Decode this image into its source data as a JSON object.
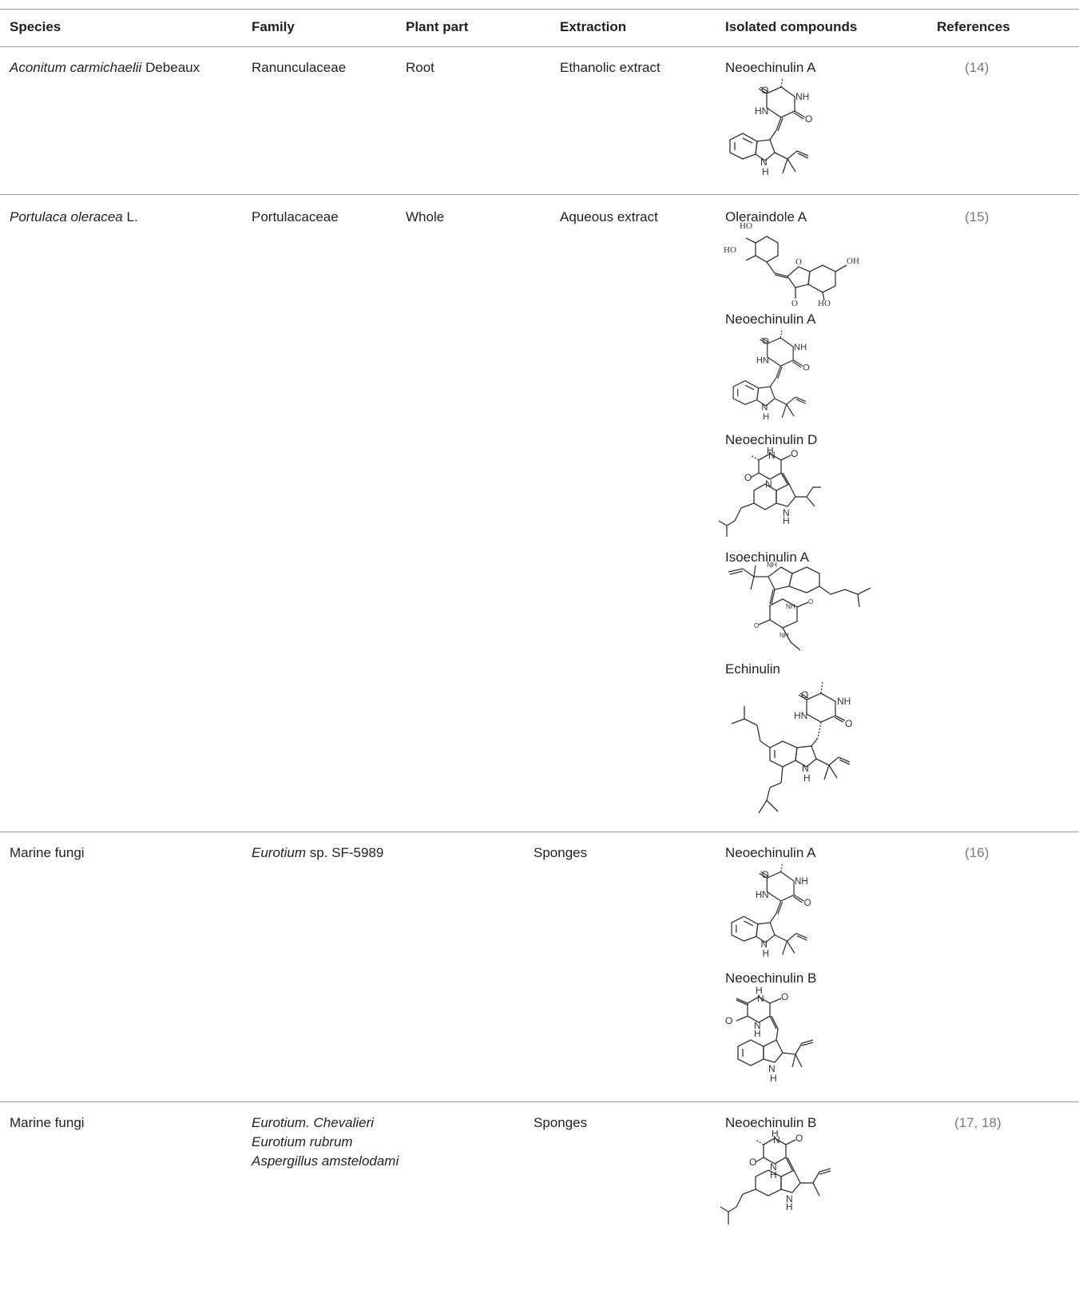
{
  "headers": [
    "Species",
    "Family",
    "Plant part",
    "Extraction",
    "Isolated compounds",
    "References"
  ],
  "rows": [
    {
      "species_it": "Aconitum carmichaelii",
      "species_rest": " Debeaux",
      "family": "Ranunculaceae",
      "part": "Root",
      "extraction": "Ethanolic extract",
      "compounds": [
        "Neoechinulin A"
      ],
      "ref_open": "(",
      "ref_nums": [
        "14"
      ],
      "ref_close": ")"
    },
    {
      "species_it": "Portulaca oleracea",
      "species_rest": " L.",
      "family": "Portulacaceae",
      "part": "Whole",
      "extraction": "Aqueous extract",
      "compounds": [
        "Oleraindole A",
        "Neoechinulin A",
        "Neoechinulin D",
        "Isoechinulin A",
        "Echinulin"
      ],
      "ref_open": "(",
      "ref_nums": [
        "15"
      ],
      "ref_close": ")"
    },
    {
      "species": "Marine fungi",
      "family_it": "Eurotium",
      "family_rest": " sp. SF-5989",
      "part": "Sponges",
      "compounds": [
        "Neoechinulin A",
        "Neoechinulin B"
      ],
      "ref_open": "(",
      "ref_nums": [
        "16"
      ],
      "ref_close": ")"
    },
    {
      "species": "Marine fungi",
      "family_lines": [
        "Eurotium. Chevalieri",
        "Eurotium rubrum",
        "Aspergillus amstelodami"
      ],
      "part": "Sponges",
      "compounds": [
        "Neoechinulin B"
      ],
      "ref_open": "(",
      "ref_nums": [
        "17",
        "18"
      ],
      "ref_sep": ", ",
      "ref_close": ")"
    }
  ],
  "atom_labels": {
    "O": "O",
    "NH": "NH",
    "HN": "HN",
    "N": "N",
    "H": "H",
    "HO": "HO",
    "OH": "OH"
  },
  "colors": {
    "rule": "#9a9a9a",
    "text": "#231f20",
    "ref": "#7a7a7a"
  }
}
